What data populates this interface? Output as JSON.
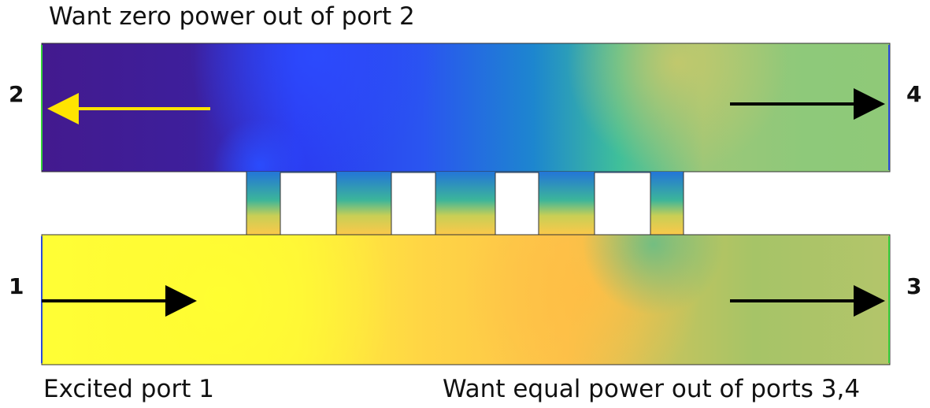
{
  "captions": {
    "top": "Want zero power out of port 2",
    "bottom_left": "Excited port 1",
    "bottom_right": "Want equal power out of ports 3,4"
  },
  "ports": {
    "p1": "1",
    "p2": "2",
    "p3": "3",
    "p4": "4"
  },
  "colors": {
    "arrow_port2": "#ffe400",
    "arrow_default": "#000000",
    "field_low": "#3b1c8c",
    "field_mid": "#1f8fc8",
    "field_high": "#ffff30"
  }
}
